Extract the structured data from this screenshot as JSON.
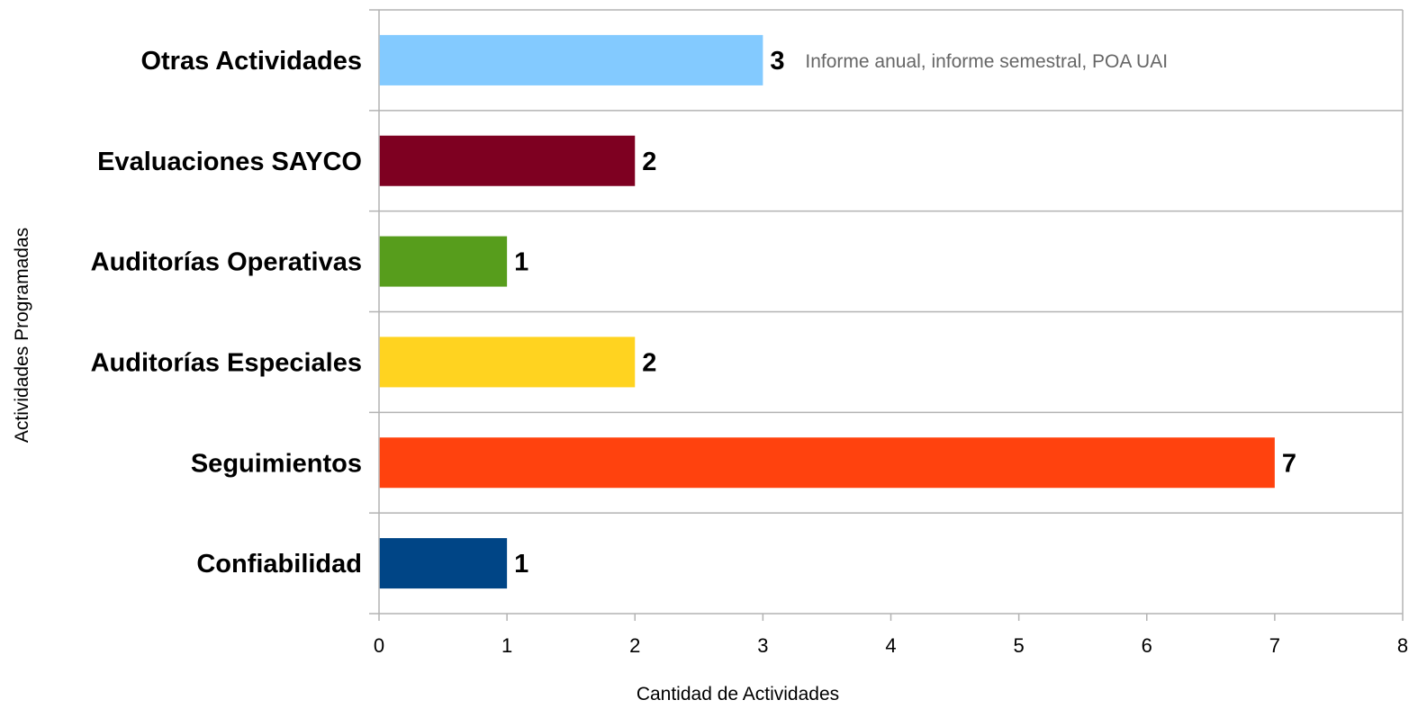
{
  "chart_data": {
    "type": "bar",
    "orientation": "horizontal",
    "categories": [
      "Otras Actividades",
      "Evaluaciones SAYCO",
      "Auditorías Operativas",
      "Auditorías Especiales",
      "Seguimientos",
      "Confiabilidad"
    ],
    "values": [
      3,
      2,
      1,
      2,
      7,
      1
    ],
    "colors": [
      "#83caff",
      "#7e0021",
      "#579d1c",
      "#ffd320",
      "#ff420e",
      "#004586"
    ],
    "data_labels": [
      "3",
      "2",
      "1",
      "2",
      "7",
      "1"
    ],
    "annotations": [
      {
        "category": "Otras Actividades",
        "text": "Informe anual, informe semestral, POA UAI"
      }
    ],
    "title": "",
    "xlabel": "Cantidad de Actividades",
    "ylabel": "Actividades Programadas",
    "xlim": [
      0,
      8
    ],
    "xticks": [
      0,
      1,
      2,
      3,
      4,
      5,
      6,
      7,
      8
    ],
    "grid": true,
    "legend": "none"
  }
}
